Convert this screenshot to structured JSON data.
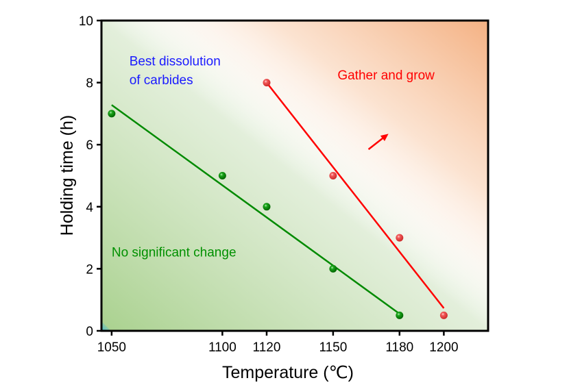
{
  "chart_data": {
    "type": "scatter",
    "title": "",
    "xlabel": "Temperature (℃)",
    "ylabel": "Holding time (h)",
    "xlim": [
      1045.4,
      1220
    ],
    "ylim": [
      0,
      10
    ],
    "grid": false,
    "x_ticks": [
      1050,
      1100,
      1120,
      1150,
      1180,
      1200
    ],
    "y_ticks": [
      0,
      2,
      4,
      6,
      8,
      10
    ],
    "series": [
      {
        "name": "green",
        "color": "#008a00",
        "points": [
          {
            "x": 1050,
            "y": 7
          },
          {
            "x": 1100,
            "y": 5
          },
          {
            "x": 1120,
            "y": 4
          },
          {
            "x": 1150,
            "y": 2
          },
          {
            "x": 1180,
            "y": 0.5
          }
        ],
        "fit_line": [
          {
            "x": 1050,
            "y": 7.28
          },
          {
            "x": 1180,
            "y": 0.55
          }
        ]
      },
      {
        "name": "red",
        "color": "#ff0000",
        "points": [
          {
            "x": 1120,
            "y": 8
          },
          {
            "x": 1150,
            "y": 5
          },
          {
            "x": 1180,
            "y": 3
          },
          {
            "x": 1200,
            "y": 0.5
          }
        ],
        "fit_line": [
          {
            "x": 1120,
            "y": 8.0
          },
          {
            "x": 1200,
            "y": 0.73
          }
        ]
      }
    ],
    "annotations": [
      {
        "text": "Best dissolution",
        "x": 1058,
        "y": 8.55,
        "color": "#1a1aff"
      },
      {
        "text": "of carbides",
        "x": 1058,
        "y": 7.95,
        "color": "#1a1aff"
      },
      {
        "text": "Gather and grow",
        "x": 1152,
        "y": 8.1,
        "color": "#ff0000"
      },
      {
        "text": "No significant change",
        "x": 1050,
        "y": 2.4,
        "color": "#009000"
      }
    ],
    "arrow": {
      "from": {
        "x": 1166,
        "y": 5.85
      },
      "to": {
        "x": 1175,
        "y": 6.35
      },
      "color": "#ff0000"
    },
    "background": {
      "low_left_color": "#a9d18e",
      "top_right_color": "#f4b183"
    }
  }
}
